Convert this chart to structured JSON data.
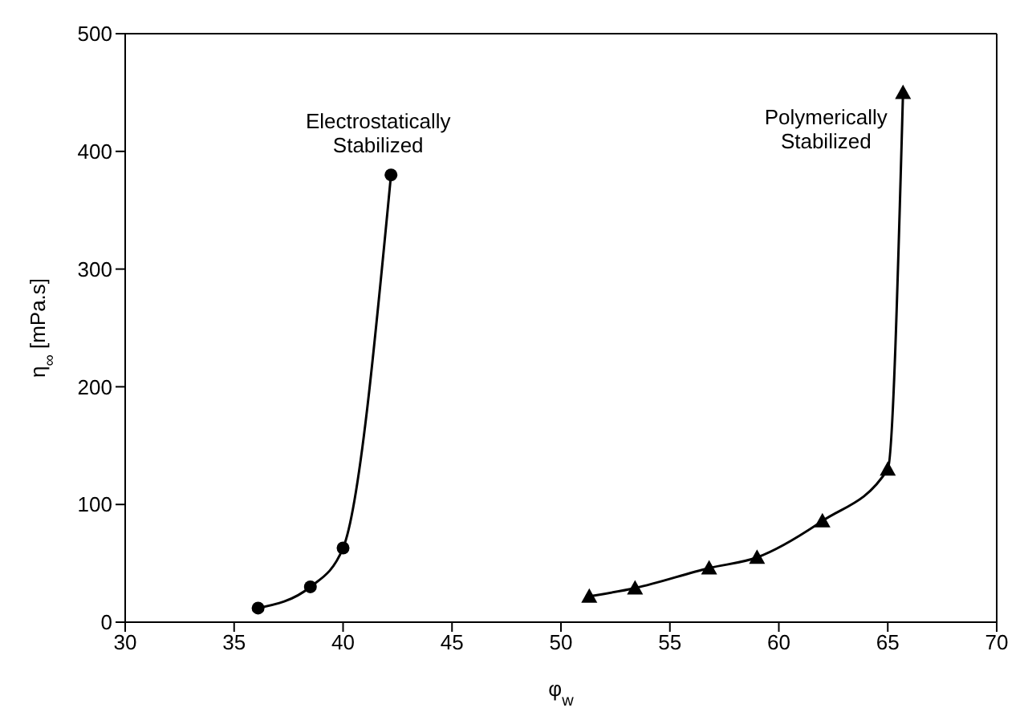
{
  "chart_data": {
    "type": "line",
    "xlabel": "φ$_{w}$",
    "ylabel": "η$_{∞}$ [mPa.s]",
    "xlim": [
      30,
      70
    ],
    "xticks": [
      30,
      35,
      40,
      45,
      50,
      55,
      60,
      65,
      70
    ],
    "ylim": [
      0,
      500
    ],
    "yticks": [
      0,
      100,
      200,
      300,
      400,
      500
    ],
    "series": [
      {
        "color": "#000000",
        "marker": "circle",
        "x": [
          36.1,
          38.5,
          40,
          42.2
        ],
        "values": [
          12,
          30,
          63,
          380
        ]
      },
      {
        "color": "#000000",
        "marker": "triangle",
        "x": [
          51.3,
          53.4,
          56.8,
          59,
          62,
          65,
          65.7
        ],
        "values": [
          22,
          29,
          46,
          55,
          86,
          130,
          450
        ]
      }
    ],
    "annotations": [
      {
        "text": "Electrostatically\nStabilized",
        "x": 42.2,
        "y": 380
      },
      {
        "text": "Polymerically\nStabilized",
        "x": 65.7,
        "y": 450
      }
    ]
  }
}
